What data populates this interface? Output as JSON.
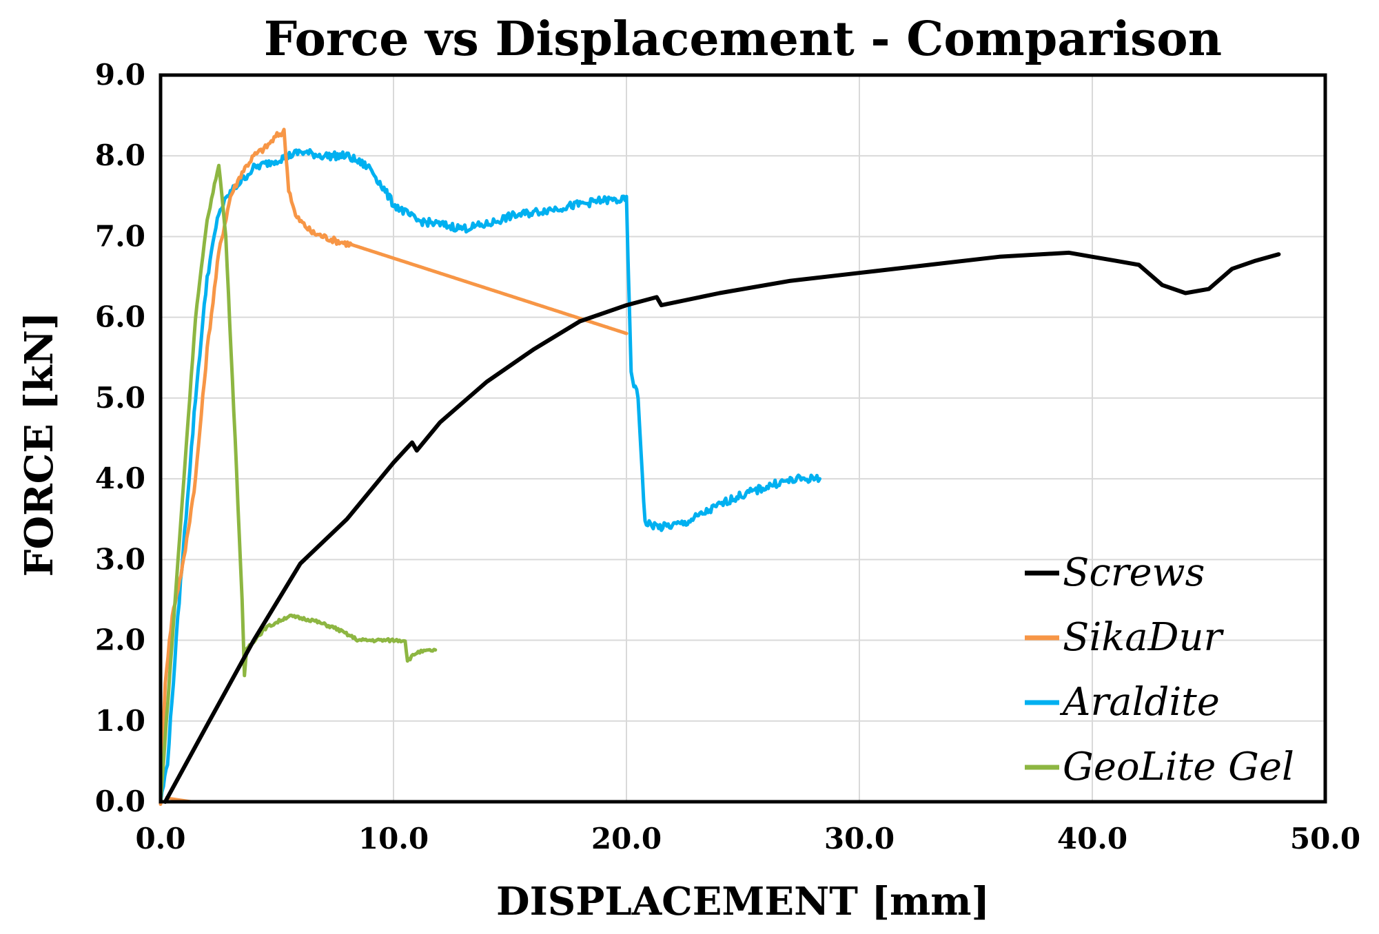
{
  "chart_data": {
    "type": "line",
    "title": "Force vs Displacement - Comparison",
    "xlabel": "DISPLACEMENT [mm]",
    "ylabel": "FORCE [kN]",
    "xlim": [
      0,
      50
    ],
    "ylim": [
      0,
      9
    ],
    "xticks": [
      0,
      10,
      20,
      30,
      40,
      50
    ],
    "xtick_labels": [
      "0.0",
      "10.0",
      "20.0",
      "30.0",
      "40.0",
      "50.0"
    ],
    "yticks": [
      0,
      1,
      2,
      3,
      4,
      5,
      6,
      7,
      8,
      9
    ],
    "ytick_labels": [
      "0.0",
      "1.0",
      "2.0",
      "3.0",
      "4.0",
      "5.0",
      "6.0",
      "7.0",
      "8.0",
      "9.0"
    ],
    "grid": true,
    "legend_position": "bottom-right",
    "series": [
      {
        "name": "Screws",
        "color": "#000000",
        "noise": 0,
        "points": [
          [
            0.2,
            0.0
          ],
          [
            2.0,
            0.95
          ],
          [
            4.0,
            2.0
          ],
          [
            6.0,
            2.95
          ],
          [
            8.0,
            3.5
          ],
          [
            10.0,
            4.2
          ],
          [
            10.8,
            4.45
          ],
          [
            11.0,
            4.35
          ],
          [
            12.0,
            4.7
          ],
          [
            14.0,
            5.2
          ],
          [
            16.0,
            5.6
          ],
          [
            18.0,
            5.95
          ],
          [
            20.0,
            6.15
          ],
          [
            21.3,
            6.25
          ],
          [
            21.5,
            6.15
          ],
          [
            24.0,
            6.3
          ],
          [
            27.0,
            6.45
          ],
          [
            30.0,
            6.55
          ],
          [
            33.0,
            6.65
          ],
          [
            36.0,
            6.75
          ],
          [
            39.0,
            6.8
          ],
          [
            40.0,
            6.75
          ],
          [
            41.0,
            6.7
          ],
          [
            42.0,
            6.65
          ],
          [
            43.0,
            6.4
          ],
          [
            44.0,
            6.3
          ],
          [
            45.0,
            6.35
          ],
          [
            46.0,
            6.6
          ],
          [
            47.0,
            6.7
          ],
          [
            48.0,
            6.78
          ]
        ]
      },
      {
        "name": "SikaDur",
        "color": "#F79646",
        "noise": 0.04,
        "points": [
          [
            0.0,
            0.0
          ],
          [
            0.2,
            1.5
          ],
          [
            0.5,
            2.3
          ],
          [
            1.0,
            3.0
          ],
          [
            1.5,
            4.0
          ],
          [
            2.0,
            5.6
          ],
          [
            2.5,
            6.8
          ],
          [
            3.0,
            7.5
          ],
          [
            3.5,
            7.8
          ],
          [
            4.0,
            8.0
          ],
          [
            4.5,
            8.1
          ],
          [
            5.0,
            8.25
          ],
          [
            5.3,
            8.3
          ],
          [
            5.5,
            7.6
          ],
          [
            5.8,
            7.25
          ],
          [
            6.5,
            7.05
          ],
          [
            7.5,
            6.95
          ],
          [
            8.2,
            6.9
          ],
          [
            20.0,
            5.8
          ]
        ],
        "tail": [
          [
            0.2,
            0.05
          ],
          [
            1.4,
            0.0
          ]
        ]
      },
      {
        "name": "Araldite",
        "color": "#00B0F0",
        "noise": 0.05,
        "points": [
          [
            0.0,
            0.0
          ],
          [
            0.3,
            0.5
          ],
          [
            0.8,
            2.5
          ],
          [
            1.5,
            5.0
          ],
          [
            2.0,
            6.5
          ],
          [
            2.5,
            7.3
          ],
          [
            3.0,
            7.55
          ],
          [
            3.5,
            7.7
          ],
          [
            4.0,
            7.85
          ],
          [
            5.0,
            7.95
          ],
          [
            6.0,
            8.05
          ],
          [
            7.0,
            8.0
          ],
          [
            8.0,
            8.0
          ],
          [
            9.0,
            7.85
          ],
          [
            10.0,
            7.4
          ],
          [
            11.0,
            7.2
          ],
          [
            12.0,
            7.15
          ],
          [
            13.0,
            7.1
          ],
          [
            14.0,
            7.15
          ],
          [
            15.0,
            7.25
          ],
          [
            16.0,
            7.3
          ],
          [
            17.0,
            7.35
          ],
          [
            18.0,
            7.4
          ],
          [
            19.0,
            7.45
          ],
          [
            20.0,
            7.45
          ],
          [
            20.2,
            5.3
          ],
          [
            20.5,
            5.0
          ],
          [
            20.8,
            3.45
          ],
          [
            21.5,
            3.4
          ],
          [
            22.5,
            3.45
          ],
          [
            23.5,
            3.6
          ],
          [
            24.5,
            3.75
          ],
          [
            25.5,
            3.85
          ],
          [
            26.5,
            3.95
          ],
          [
            27.5,
            4.0
          ],
          [
            28.3,
            4.0
          ]
        ]
      },
      {
        "name": "GeoLite Gel",
        "color": "#8DB642",
        "noise": 0.02,
        "points": [
          [
            0.0,
            0.0
          ],
          [
            0.5,
            2.0
          ],
          [
            1.0,
            4.0
          ],
          [
            1.5,
            6.0
          ],
          [
            2.0,
            7.2
          ],
          [
            2.5,
            7.9
          ],
          [
            2.8,
            7.0
          ],
          [
            3.2,
            4.5
          ],
          [
            3.5,
            2.5
          ],
          [
            3.6,
            1.55
          ],
          [
            3.7,
            1.9
          ],
          [
            4.5,
            2.15
          ],
          [
            5.5,
            2.3
          ],
          [
            6.5,
            2.25
          ],
          [
            7.5,
            2.15
          ],
          [
            8.5,
            2.0
          ],
          [
            10.5,
            2.0
          ],
          [
            10.6,
            1.75
          ],
          [
            11.0,
            1.85
          ],
          [
            11.8,
            1.88
          ]
        ]
      }
    ]
  }
}
